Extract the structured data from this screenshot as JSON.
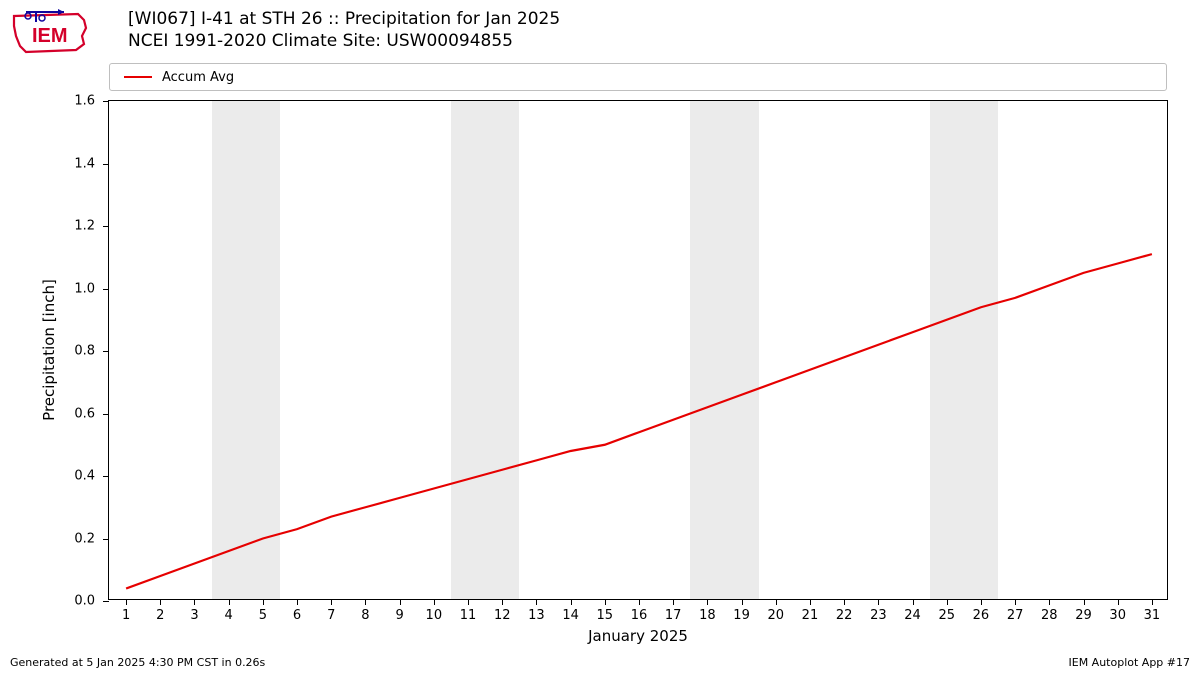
{
  "title": {
    "line1": "[WI067] I-41 at STH 26  :: Precipitation for Jan 2025",
    "line2": "NCEI 1991-2020 Climate Site: USW00094855",
    "fontsize": 17,
    "color": "#000000"
  },
  "logo": {
    "outline_color": "#d4002a",
    "accent_color": "#10069f"
  },
  "chart": {
    "type": "line",
    "plot_bg": "#ffffff",
    "border_color": "#000000",
    "xlim": [
      0.5,
      31.5
    ],
    "ylim": [
      0.0,
      1.6
    ],
    "xticks": [
      1,
      2,
      3,
      4,
      5,
      6,
      7,
      8,
      9,
      10,
      11,
      12,
      13,
      14,
      15,
      16,
      17,
      18,
      19,
      20,
      21,
      22,
      23,
      24,
      25,
      26,
      27,
      28,
      29,
      30,
      31
    ],
    "yticks": [
      0.0,
      0.2,
      0.4,
      0.6,
      0.8,
      1.0,
      1.2,
      1.4,
      1.6
    ],
    "xlabel": "January 2025",
    "ylabel": "Precipitation [inch]",
    "label_fontsize": 15,
    "tick_fontsize": 13,
    "weekend_shade_color": "#ebebeb",
    "weekend_ranges": [
      [
        3.5,
        5.5
      ],
      [
        10.5,
        12.5
      ],
      [
        17.5,
        19.5
      ],
      [
        24.5,
        26.5
      ]
    ],
    "grid_h_at_ylim_top": true,
    "series": [
      {
        "name": "Accum Avg",
        "color": "#e60000",
        "line_width": 2.2,
        "x": [
          1,
          2,
          3,
          4,
          5,
          6,
          7,
          8,
          9,
          10,
          11,
          12,
          13,
          14,
          15,
          16,
          17,
          18,
          19,
          20,
          21,
          22,
          23,
          24,
          25,
          26,
          27,
          28,
          29,
          30,
          31
        ],
        "y": [
          0.04,
          0.08,
          0.12,
          0.16,
          0.2,
          0.23,
          0.27,
          0.3,
          0.33,
          0.36,
          0.39,
          0.42,
          0.45,
          0.48,
          0.5,
          0.54,
          0.58,
          0.62,
          0.66,
          0.7,
          0.74,
          0.78,
          0.82,
          0.86,
          0.9,
          0.94,
          0.97,
          1.01,
          1.05,
          1.08,
          1.11
        ]
      }
    ],
    "legend": {
      "position": "top",
      "border_color": "#bfbfbf",
      "bg": "#ffffff",
      "fontsize": 13
    }
  },
  "footer": {
    "left": "Generated at 5 Jan 2025 4:30 PM CST in 0.26s",
    "right": "IEM Autoplot App #17",
    "fontsize": 11
  }
}
